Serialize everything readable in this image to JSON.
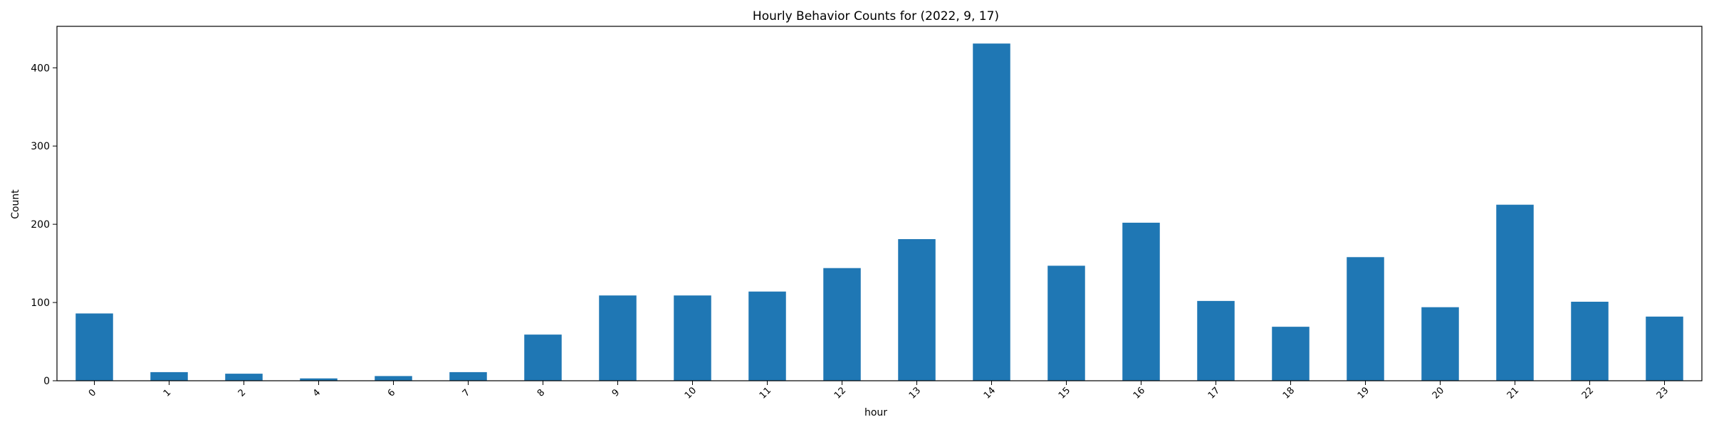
{
  "chart_data": {
    "type": "bar",
    "title": "Hourly Behavior Counts for (2022, 9, 17)",
    "xlabel": "hour",
    "ylabel": "Count",
    "categories": [
      "0",
      "1",
      "2",
      "4",
      "6",
      "7",
      "8",
      "9",
      "10",
      "11",
      "12",
      "13",
      "14",
      "15",
      "16",
      "17",
      "18",
      "19",
      "20",
      "21",
      "22",
      "23"
    ],
    "values": [
      86,
      11,
      9,
      3,
      6,
      11,
      59,
      109,
      109,
      114,
      144,
      181,
      431,
      147,
      202,
      102,
      69,
      158,
      94,
      225,
      101,
      82
    ],
    "ylim": [
      0,
      453
    ],
    "yticks": [
      0,
      100,
      200,
      300,
      400
    ],
    "grid": false,
    "legend": "none",
    "bar_color": "#1f77b4"
  }
}
